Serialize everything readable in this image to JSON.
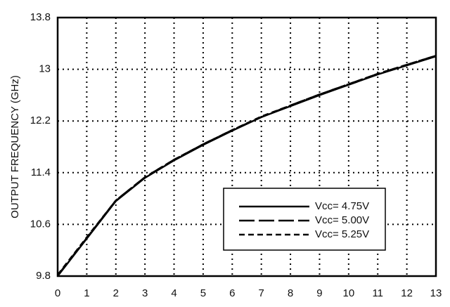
{
  "chart_data": {
    "type": "line",
    "y_label": "OUTPUT FREQUENCY (GHz)",
    "x": [
      0,
      1,
      2,
      3,
      4,
      5,
      6,
      7,
      8,
      9,
      10,
      11,
      12,
      13
    ],
    "series": [
      {
        "name": "Vcc= 4.75V",
        "color": "#000000",
        "dash": "solid",
        "values": [
          9.8,
          10.38,
          10.96,
          11.32,
          11.59,
          11.83,
          12.05,
          12.26,
          12.43,
          12.6,
          12.76,
          12.92,
          13.06,
          13.2
        ]
      },
      {
        "name": "Vcc= 5.00V",
        "color": "#000000",
        "dash": "long-dash",
        "values": [
          9.81,
          10.39,
          10.97,
          11.33,
          11.6,
          11.84,
          12.06,
          12.26,
          12.44,
          12.61,
          12.77,
          12.93,
          13.07,
          13.21
        ]
      },
      {
        "name": "Vcc= 5.25V",
        "color": "#000000",
        "dash": "short-dash",
        "values": [
          9.82,
          10.4,
          10.97,
          11.33,
          11.6,
          11.84,
          12.06,
          12.27,
          12.44,
          12.61,
          12.77,
          12.93,
          13.07,
          13.21
        ]
      }
    ],
    "xlim": [
      0,
      13
    ],
    "xticks": [
      0,
      1,
      2,
      3,
      4,
      5,
      6,
      7,
      8,
      9,
      10,
      11,
      12,
      13
    ],
    "ylim": [
      9.8,
      13.8
    ],
    "yticks": [
      9.8,
      10.6,
      11.4,
      12.2,
      13,
      13.8
    ],
    "grid": true,
    "legend": "lower-right"
  }
}
